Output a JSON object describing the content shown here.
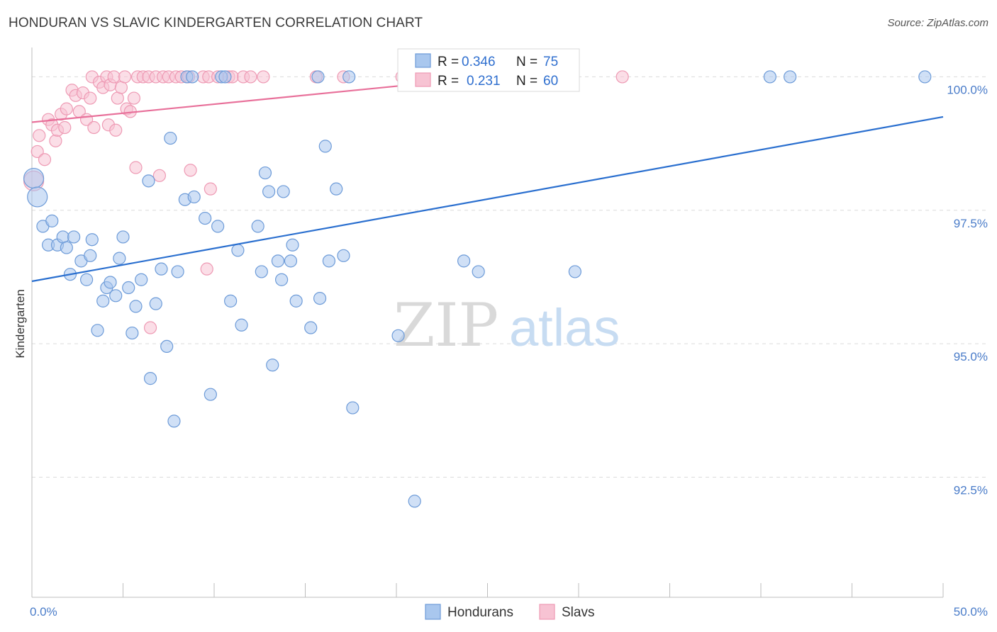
{
  "title": "HONDURAN VS SLAVIC KINDERGARTEN CORRELATION CHART",
  "source": "Source: ZipAtlas.com",
  "watermark": {
    "zip": "ZIP",
    "atlas": "atlas"
  },
  "colors": {
    "blue_fill": "#a9c7ee",
    "blue_stroke": "#6d9bd8",
    "blue_line": "#2a6fcf",
    "pink_fill": "#f7c3d3",
    "pink_stroke": "#ee9ab4",
    "pink_line": "#e8709a",
    "grid": "#dcdcdc",
    "tick_label": "#4a7cc9"
  },
  "legend": {
    "rows": [
      {
        "r_label": "R = ",
        "r_value": "0.346",
        "n_label": "N = ",
        "n_value": "75"
      },
      {
        "r_label": "R = ",
        "r_value": "0.231",
        "n_label": "N = ",
        "n_value": "60"
      }
    ]
  },
  "chart_data": {
    "type": "scatter",
    "title": "HONDURAN VS SLAVIC KINDERGARTEN CORRELATION CHART",
    "xlabel": "",
    "ylabel": "Kindergarten",
    "xlim": [
      0,
      50
    ],
    "ylim": [
      90.25,
      100.55
    ],
    "x_tick_labels": [
      "0.0%",
      "50.0%"
    ],
    "y_ticks": [
      92.5,
      95.0,
      97.5,
      100.0
    ],
    "y_tick_labels": [
      "92.5%",
      "95.0%",
      "97.5%",
      "100.0%"
    ],
    "grid": true,
    "legend_position": "top-center",
    "series": [
      {
        "name": "Hondurans",
        "r": 0.346,
        "n": 75,
        "trend": {
          "x": [
            0,
            50
          ],
          "y": [
            96.17,
            99.25
          ]
        },
        "points": [
          [
            0.1,
            98.1
          ],
          [
            0.3,
            97.75
          ],
          [
            0.6,
            97.2
          ],
          [
            0.9,
            96.85
          ],
          [
            1.1,
            97.3
          ],
          [
            1.4,
            96.85
          ],
          [
            1.7,
            97.0
          ],
          [
            1.9,
            96.8
          ],
          [
            2.1,
            96.3
          ],
          [
            2.3,
            97.0
          ],
          [
            2.7,
            96.55
          ],
          [
            3.0,
            96.2
          ],
          [
            3.2,
            96.65
          ],
          [
            3.3,
            96.95
          ],
          [
            3.6,
            95.25
          ],
          [
            3.9,
            95.8
          ],
          [
            4.1,
            96.05
          ],
          [
            4.3,
            96.15
          ],
          [
            4.6,
            95.9
          ],
          [
            4.8,
            96.6
          ],
          [
            5.0,
            97.0
          ],
          [
            5.3,
            96.05
          ],
          [
            5.5,
            95.2
          ],
          [
            5.7,
            95.7
          ],
          [
            6.0,
            96.2
          ],
          [
            6.4,
            98.05
          ],
          [
            6.5,
            94.35
          ],
          [
            6.8,
            95.75
          ],
          [
            7.1,
            96.4
          ],
          [
            7.4,
            94.95
          ],
          [
            7.6,
            98.85
          ],
          [
            7.8,
            93.55
          ],
          [
            8.0,
            96.35
          ],
          [
            8.4,
            97.7
          ],
          [
            8.5,
            100.0
          ],
          [
            8.8,
            100.0
          ],
          [
            8.9,
            97.75
          ],
          [
            9.5,
            97.35
          ],
          [
            9.8,
            94.05
          ],
          [
            10.2,
            97.2
          ],
          [
            10.4,
            100.0
          ],
          [
            10.6,
            100.0
          ],
          [
            10.9,
            95.8
          ],
          [
            11.3,
            96.75
          ],
          [
            11.5,
            95.35
          ],
          [
            12.4,
            97.2
          ],
          [
            12.6,
            96.35
          ],
          [
            12.8,
            98.2
          ],
          [
            13.0,
            97.85
          ],
          [
            13.2,
            94.6
          ],
          [
            13.5,
            96.55
          ],
          [
            13.7,
            96.2
          ],
          [
            13.8,
            97.85
          ],
          [
            14.2,
            96.55
          ],
          [
            14.3,
            96.85
          ],
          [
            14.5,
            95.8
          ],
          [
            15.3,
            95.3
          ],
          [
            15.7,
            100.0
          ],
          [
            15.8,
            95.85
          ],
          [
            16.1,
            98.7
          ],
          [
            16.3,
            96.55
          ],
          [
            16.7,
            97.9
          ],
          [
            17.1,
            96.65
          ],
          [
            17.4,
            100.0
          ],
          [
            17.6,
            93.8
          ],
          [
            20.1,
            95.15
          ],
          [
            21.0,
            92.05
          ],
          [
            22.4,
            100.0
          ],
          [
            23.7,
            96.55
          ],
          [
            24.5,
            96.35
          ],
          [
            26.7,
            100.0
          ],
          [
            28.2,
            100.0
          ],
          [
            29.8,
            96.35
          ],
          [
            40.5,
            100.0
          ],
          [
            41.6,
            100.0
          ],
          [
            49.0,
            100.0
          ]
        ]
      },
      {
        "name": "Slavs",
        "r": 0.231,
        "n": 60,
        "trend": {
          "x": [
            0,
            24.6
          ],
          "y": [
            99.15,
            99.98
          ]
        },
        "points": [
          [
            0.1,
            98.05
          ],
          [
            0.3,
            98.6
          ],
          [
            0.4,
            98.9
          ],
          [
            0.7,
            98.45
          ],
          [
            0.9,
            99.2
          ],
          [
            1.1,
            99.1
          ],
          [
            1.3,
            98.8
          ],
          [
            1.4,
            99.0
          ],
          [
            1.6,
            99.3
          ],
          [
            1.8,
            99.05
          ],
          [
            1.9,
            99.4
          ],
          [
            2.2,
            99.75
          ],
          [
            2.4,
            99.65
          ],
          [
            2.6,
            99.35
          ],
          [
            2.8,
            99.7
          ],
          [
            3.0,
            99.2
          ],
          [
            3.2,
            99.6
          ],
          [
            3.3,
            100.0
          ],
          [
            3.4,
            99.05
          ],
          [
            3.7,
            99.9
          ],
          [
            3.9,
            99.8
          ],
          [
            4.1,
            100.0
          ],
          [
            4.3,
            99.85
          ],
          [
            4.2,
            99.1
          ],
          [
            4.5,
            100.0
          ],
          [
            4.6,
            99.0
          ],
          [
            4.7,
            99.6
          ],
          [
            4.9,
            99.8
          ],
          [
            5.1,
            100.0
          ],
          [
            5.2,
            99.4
          ],
          [
            5.4,
            99.35
          ],
          [
            5.6,
            99.6
          ],
          [
            5.7,
            98.3
          ],
          [
            5.8,
            100.0
          ],
          [
            6.1,
            100.0
          ],
          [
            6.4,
            100.0
          ],
          [
            6.5,
            95.3
          ],
          [
            6.8,
            100.0
          ],
          [
            7.0,
            98.15
          ],
          [
            7.2,
            100.0
          ],
          [
            7.5,
            100.0
          ],
          [
            7.9,
            100.0
          ],
          [
            8.2,
            100.0
          ],
          [
            8.6,
            100.0
          ],
          [
            8.7,
            98.25
          ],
          [
            9.4,
            100.0
          ],
          [
            9.6,
            96.4
          ],
          [
            9.7,
            100.0
          ],
          [
            9.8,
            97.9
          ],
          [
            10.2,
            100.0
          ],
          [
            10.8,
            100.0
          ],
          [
            11.0,
            100.0
          ],
          [
            11.6,
            100.0
          ],
          [
            12.0,
            100.0
          ],
          [
            12.7,
            100.0
          ],
          [
            15.6,
            100.0
          ],
          [
            17.1,
            100.0
          ],
          [
            20.3,
            100.0
          ],
          [
            27.5,
            100.0
          ],
          [
            32.4,
            100.0
          ]
        ]
      }
    ]
  }
}
